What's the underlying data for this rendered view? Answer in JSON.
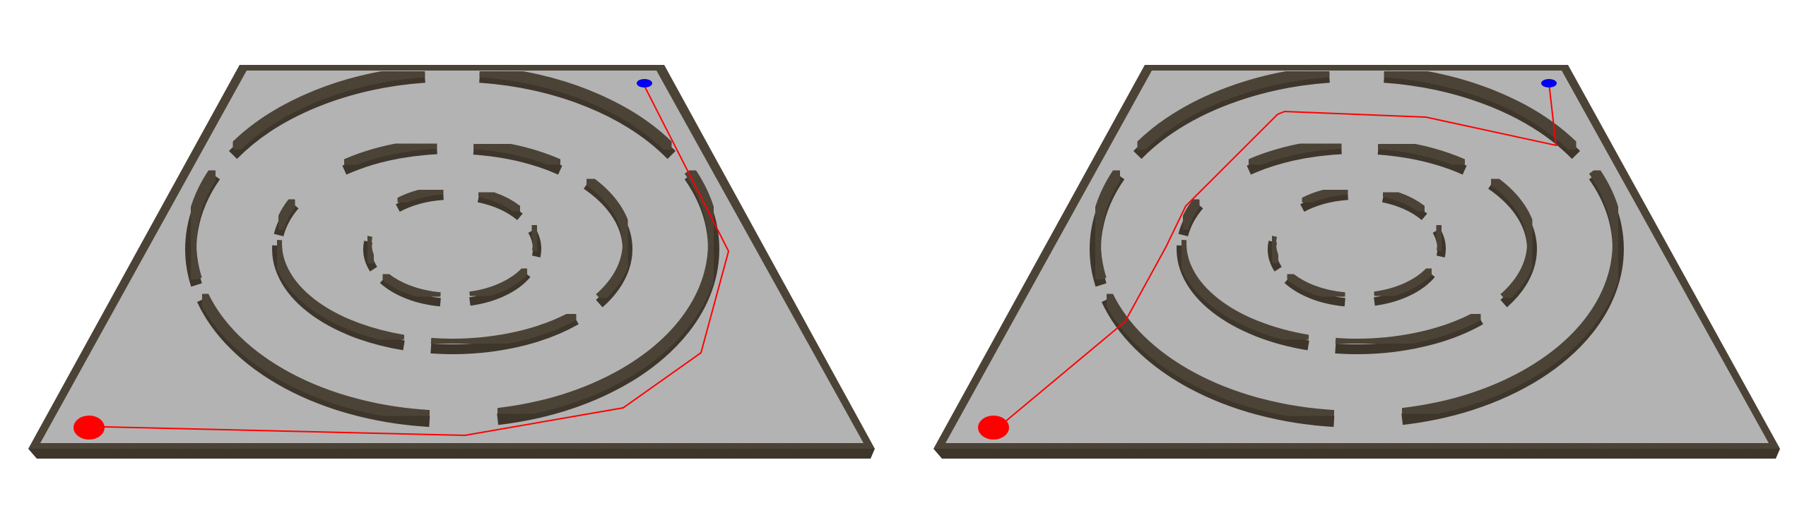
{
  "scene": {
    "boards": [
      {
        "id": "left",
        "path_label": "path-around-outside",
        "start_marker": "red-start",
        "goal_marker": "blue-goal"
      },
      {
        "id": "right",
        "path_label": "path-through-rings",
        "start_marker": "red-start",
        "goal_marker": "blue-goal"
      }
    ]
  },
  "colors": {
    "background": "#ffffff",
    "floor": "#b3b3b3",
    "wall_top": "#4f4639",
    "wall_side": "#6e6453",
    "wall_dark": "#3e362b",
    "path": "#ff0000",
    "start": "#ff0000",
    "goal": "#0000ee"
  }
}
